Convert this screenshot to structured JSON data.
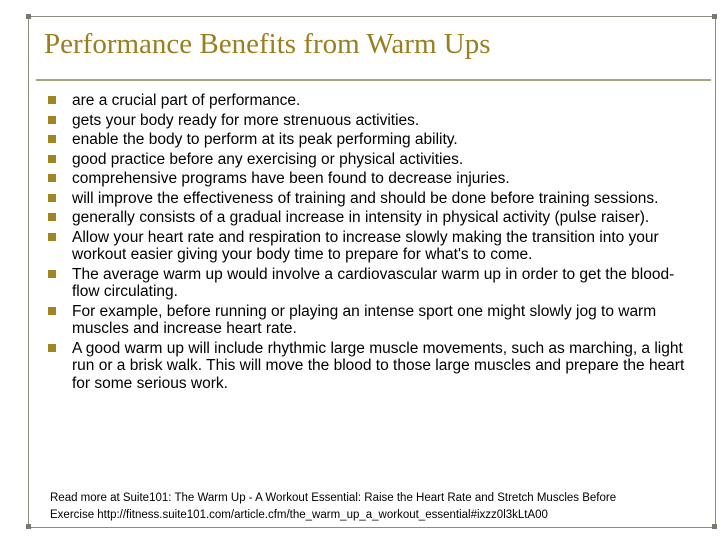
{
  "title": "Performance Benefits from Warm Ups",
  "bullets": [
    "are a crucial part of performance.",
    "gets your body ready for more strenuous activities.",
    "enable the body to perform at its peak performing ability.",
    "good practice before any exercising or physical activities.",
    "comprehensive programs have been found to decrease injuries.",
    "will improve the effectiveness of training and should be done before training sessions.",
    "generally consists of a gradual increase in intensity in physical activity (pulse raiser).",
    "Allow your heart rate and respiration to increase slowly making the transition into your workout easier giving your body time to prepare for what's to come.",
    "The average warm up would involve a cardiovascular warm up in order to get the blood-flow circulating.",
    "For example, before running or playing an intense sport one might slowly jog to warm muscles and increase heart rate.",
    "A good warm up will include rhythmic large muscle movements, such as marching, a light run or a brisk walk. This will move the blood to those large muscles and prepare the heart for some serious work."
  ],
  "footer": {
    "line1": "Read more at Suite101: The Warm Up - A Workout Essential: Raise the Heart Rate and Stretch Muscles Before",
    "line2": "Exercise http://fitness.suite101.com/article.cfm/the_warm_up_a_workout_essential#ixzz0l3kLtA00"
  },
  "colors": {
    "title": "#9a7f1f",
    "bullet": "#a08522",
    "rule": "#a6a67a",
    "frame": "#8c8c7a"
  },
  "icons": {
    "bullet": "square-bullet-icon"
  }
}
